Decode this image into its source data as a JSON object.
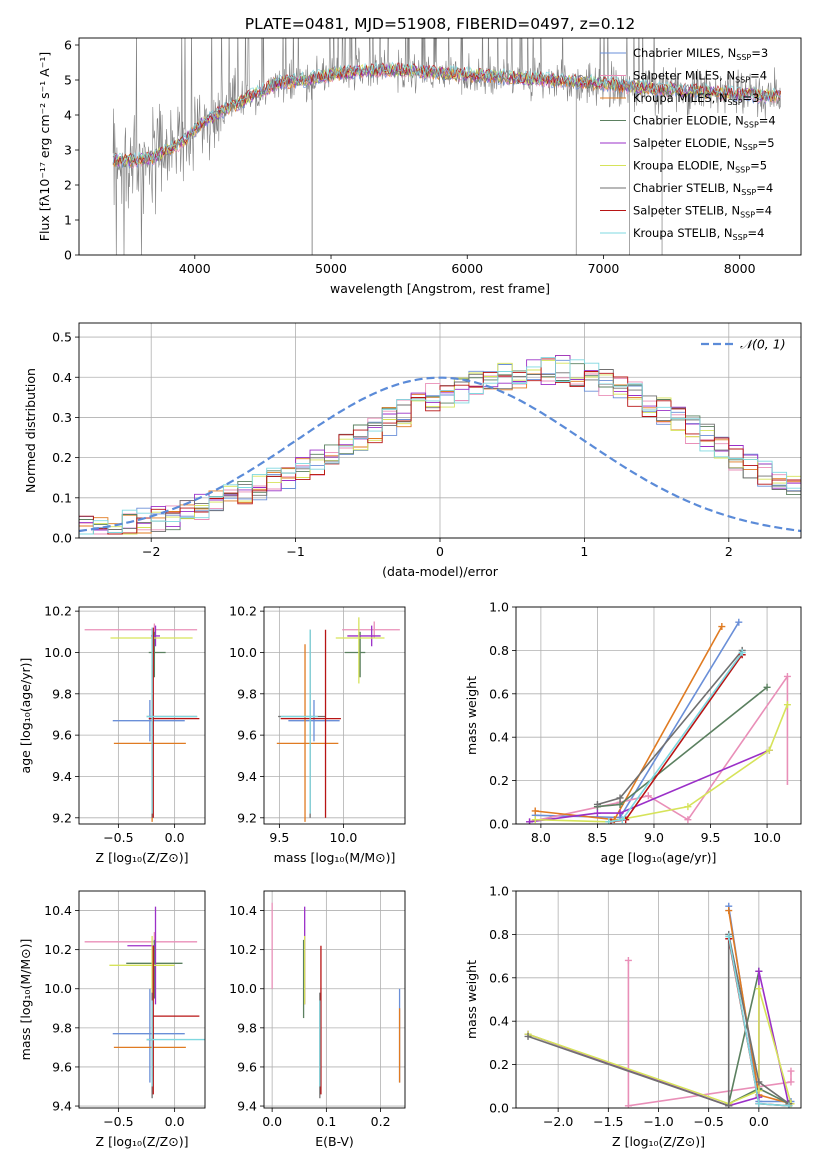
{
  "figure_title": "PLATE=0481, MJD=51908, FIBERID=0497, z=0.12",
  "colors": {
    "Chabrier MILES": "#6a8fd8",
    "Salpeter MILES": "#e98fb8",
    "Kroupa MILES": "#e07b22",
    "Chabrier ELODIE": "#5b8060",
    "Salpeter ELODIE": "#9b30c8",
    "Kroupa ELODIE": "#d6e35a",
    "Chabrier STELIB": "#707070",
    "Salpeter STELIB": "#b81414",
    "Kroupa STELIB": "#7fd8e0",
    "normal_curve": "#5b8bd8",
    "data": "#808080"
  },
  "chart_data": [
    {
      "id": "spectrum",
      "type": "line",
      "title": "PLATE=0481, MJD=51908, FIBERID=0497, z=0.12",
      "xlabel": "wavelength [Angstrom, rest frame]",
      "ylabel": "Flux [fλ10⁻¹⁷ erg cm⁻² s⁻¹ A⁻¹]",
      "xlim": [
        3150,
        8450
      ],
      "ylim": [
        0,
        6.2
      ],
      "xticks": [
        4000,
        5000,
        6000,
        7000,
        8000
      ],
      "yticks": [
        0,
        1,
        2,
        3,
        4,
        5,
        6
      ],
      "legend": "upper right",
      "legend_entries": [
        {
          "label": "Chabrier MILES, N",
          "sub": "SSP",
          "suffix": "=3",
          "color": "#6a8fd8"
        },
        {
          "label": "Salpeter MILES, N",
          "sub": "SSP",
          "suffix": "=4",
          "color": "#e98fb8"
        },
        {
          "label": "Kroupa MILES, N",
          "sub": "SSP",
          "suffix": "=3",
          "color": "#e07b22"
        },
        {
          "label": "Chabrier ELODIE, N",
          "sub": "SSP",
          "suffix": "=4",
          "color": "#5b8060"
        },
        {
          "label": "Salpeter ELODIE, N",
          "sub": "SSP",
          "suffix": "=5",
          "color": "#9b30c8"
        },
        {
          "label": "Kroupa ELODIE, N",
          "sub": "SSP",
          "suffix": "=5",
          "color": "#d6e35a"
        },
        {
          "label": "Chabrier STELIB, N",
          "sub": "SSP",
          "suffix": "=4",
          "color": "#707070"
        },
        {
          "label": "Salpeter STELIB, N",
          "sub": "SSP",
          "suffix": "=4",
          "color": "#b81414"
        },
        {
          "label": "Kroupa STELIB, N",
          "sub": "SSP",
          "suffix": "=4",
          "color": "#7fd8e0"
        }
      ],
      "model_continuum": {
        "x": [
          3400,
          3550,
          3700,
          3800,
          3900,
          4000,
          4100,
          4200,
          4300,
          4400,
          4500,
          4600,
          4800,
          5000,
          5200,
          5400,
          5600,
          5800,
          6000,
          6200,
          6400,
          6600,
          6800,
          7000,
          7200,
          7400,
          7600,
          7800,
          8000,
          8200
        ],
        "y": [
          2.7,
          2.7,
          2.8,
          3.0,
          3.2,
          3.6,
          3.9,
          4.1,
          4.3,
          4.5,
          4.7,
          4.9,
          5.0,
          5.15,
          5.25,
          5.3,
          5.25,
          5.2,
          5.15,
          5.1,
          5.05,
          5.0,
          4.95,
          4.9,
          4.8,
          4.75,
          4.7,
          4.65,
          4.6,
          4.55
        ]
      }
    },
    {
      "id": "residuals",
      "type": "step",
      "xlabel": "(data-model)/error",
      "ylabel": "Normed distribution",
      "xlim": [
        -2.5,
        2.5
      ],
      "ylim": [
        0,
        0.535
      ],
      "xticks": [
        -2,
        -1,
        0,
        1,
        2
      ],
      "yticks": [
        0.0,
        0.1,
        0.2,
        0.3,
        0.4,
        0.5
      ],
      "legend": "upper right",
      "legend_entry": "𝒩(0, 1)",
      "bin_width": 0.1,
      "bin_start": -2.5,
      "values_reference": [
        0.02,
        0.02,
        0.03,
        0.035,
        0.04,
        0.045,
        0.05,
        0.06,
        0.075,
        0.09,
        0.1,
        0.11,
        0.125,
        0.14,
        0.155,
        0.17,
        0.19,
        0.21,
        0.23,
        0.25,
        0.27,
        0.29,
        0.31,
        0.33,
        0.35,
        0.36,
        0.37,
        0.385,
        0.395,
        0.4,
        0.405,
        0.41,
        0.415,
        0.42,
        0.41,
        0.4,
        0.385,
        0.37,
        0.355,
        0.335,
        0.315,
        0.295,
        0.27,
        0.25,
        0.225,
        0.2,
        0.18,
        0.16,
        0.14,
        0.12
      ]
    },
    {
      "id": "age_vs_Z",
      "type": "errorbar",
      "xlabel": "Z [log₁₀(Z/Z⊙)]",
      "ylabel": "age  [log₁₀(age/yr)]",
      "xlim": [
        -0.85,
        0.27
      ],
      "ylim": [
        9.17,
        10.22
      ],
      "xticks": [
        -0.5,
        0.0
      ],
      "xticklabels": [
        "−0.5",
        "0.0"
      ],
      "yticks": [
        9.2,
        9.4,
        9.6,
        9.8,
        10.0,
        10.2
      ],
      "points": [
        {
          "name": "Chabrier MILES",
          "x": -0.22,
          "xerr": [
            0.33,
            0.31
          ],
          "y": 9.67,
          "yerr": [
            0.1,
            0.1
          ]
        },
        {
          "name": "Salpeter MILES",
          "x": -0.18,
          "xerr": [
            0.62,
            0.38
          ],
          "y": 10.11,
          "yerr": [
            0.03,
            0.03
          ]
        },
        {
          "name": "Kroupa MILES",
          "x": -0.2,
          "xerr": [
            0.34,
            0.3
          ],
          "y": 9.56,
          "yerr": [
            0.38,
            0.38
          ]
        },
        {
          "name": "Chabrier ELODIE",
          "x": -0.18,
          "xerr": [
            0.05,
            0.1
          ],
          "y": 10.0,
          "yerr": [
            0.12,
            0.1
          ]
        },
        {
          "name": "Salpeter ELODIE",
          "x": -0.17,
          "xerr": [
            0.04,
            0.04
          ],
          "y": 10.08,
          "yerr": [
            0.05,
            0.05
          ]
        },
        {
          "name": "Kroupa ELODIE",
          "x": -0.2,
          "xerr": [
            0.37,
            0.36
          ],
          "y": 10.07,
          "yerr": [
            0.04,
            0.04
          ]
        },
        {
          "name": "Chabrier STELIB",
          "x": -0.2,
          "xerr": [
            0.05,
            0.4
          ],
          "y": 9.69,
          "yerr": [
            0.49,
            0.4
          ]
        },
        {
          "name": "Salpeter STELIB",
          "x": -0.19,
          "xerr": [
            0.04,
            0.41
          ],
          "y": 9.68,
          "yerr": [
            0.48,
            0.44
          ]
        },
        {
          "name": "Kroupa STELIB",
          "x": -0.2,
          "xerr": [
            0.05,
            0.4
          ],
          "y": 9.69,
          "yerr": [
            0.47,
            0.43
          ]
        }
      ]
    },
    {
      "id": "age_vs_mass",
      "type": "errorbar",
      "xlabel": "mass [log₁₀(M/M⊙)]",
      "xlim": [
        9.38,
        10.48
      ],
      "ylim": [
        9.17,
        10.22
      ],
      "xticks": [
        9.5,
        10.0
      ],
      "yticks": [
        9.2,
        9.4,
        9.6,
        9.8,
        10.0,
        10.2
      ],
      "points": [
        {
          "name": "Chabrier MILES",
          "x": 9.77,
          "xerr": [
            0.2,
            0.2
          ],
          "y": 9.67,
          "yerr": [
            0.1,
            0.1
          ]
        },
        {
          "name": "Salpeter MILES",
          "x": 10.24,
          "xerr": [
            0.25,
            0.2
          ],
          "y": 10.11,
          "yerr": [
            0.04,
            0.04
          ]
        },
        {
          "name": "Kroupa MILES",
          "x": 9.7,
          "xerr": [
            0.22,
            0.26
          ],
          "y": 9.56,
          "yerr": [
            0.38,
            0.48
          ]
        },
        {
          "name": "Chabrier ELODIE",
          "x": 10.13,
          "xerr": [
            0.12,
            0.04
          ],
          "y": 10.0,
          "yerr": [
            0.12,
            0.1
          ]
        },
        {
          "name": "Salpeter ELODIE",
          "x": 10.22,
          "xerr": [
            0.19,
            0.07
          ],
          "y": 10.08,
          "yerr": [
            0.05,
            0.05
          ]
        },
        {
          "name": "Kroupa ELODIE",
          "x": 10.12,
          "xerr": [
            0.18,
            0.2
          ],
          "y": 10.07,
          "yerr": [
            0.22,
            0.1
          ]
        },
        {
          "name": "Chabrier STELIB",
          "x": 9.74,
          "xerr": [
            0.25,
            0.12
          ],
          "y": 9.69,
          "yerr": [
            0.49,
            0.42
          ]
        },
        {
          "name": "Salpeter STELIB",
          "x": 9.86,
          "xerr": [
            0.35,
            0.12
          ],
          "y": 9.68,
          "yerr": [
            0.48,
            0.43
          ]
        },
        {
          "name": "Kroupa STELIB",
          "x": 9.74,
          "xerr": [
            0.23,
            0.06
          ],
          "y": 9.69,
          "yerr": [
            0.47,
            0.42
          ]
        }
      ]
    },
    {
      "id": "weight_vs_age",
      "type": "line",
      "xlabel": "age  [log₁₀(age/yr)]",
      "ylabel": "mass weight",
      "xlim": [
        7.78,
        10.3
      ],
      "ylim": [
        0,
        1.0
      ],
      "xticks": [
        8.0,
        8.5,
        9.0,
        9.5,
        10.0
      ],
      "yticks": [
        0.0,
        0.2,
        0.4,
        0.6,
        0.8,
        1.0
      ],
      "series": [
        {
          "name": "Chabrier MILES",
          "x": [
            7.95,
            8.7,
            9.75
          ],
          "y": [
            0.04,
            0.03,
            0.93
          ]
        },
        {
          "name": "Salpeter MILES",
          "x": [
            7.9,
            8.7,
            8.95,
            9.3,
            10.18
          ],
          "y": [
            0.01,
            0.1,
            0.13,
            0.02,
            0.68
          ],
          "yerr_at_last": [
            0.5,
            0.0
          ]
        },
        {
          "name": "Kroupa MILES",
          "x": [
            7.95,
            8.65,
            9.6
          ],
          "y": [
            0.06,
            0.02,
            0.91
          ]
        },
        {
          "name": "Chabrier ELODIE",
          "x": [
            8.5,
            8.7,
            10.0
          ],
          "y": [
            0.08,
            0.09,
            0.63
          ]
        },
        {
          "name": "Salpeter ELODIE",
          "x": [
            7.9,
            8.5,
            8.7,
            10.02
          ],
          "y": [
            0.01,
            0.05,
            0.05,
            0.34
          ]
        },
        {
          "name": "Kroupa ELODIE",
          "x": [
            7.95,
            8.6,
            9.3,
            10.02,
            10.18
          ],
          "y": [
            0.02,
            0.01,
            0.08,
            0.34,
            0.55
          ]
        },
        {
          "name": "Chabrier STELIB",
          "x": [
            8.5,
            8.7,
            9.78
          ],
          "y": [
            0.09,
            0.12,
            0.8
          ]
        },
        {
          "name": "Salpeter STELIB",
          "x": [
            8.62,
            8.75,
            9.78
          ],
          "y": [
            0.01,
            0.02,
            0.78
          ]
        },
        {
          "name": "Kroupa STELIB",
          "x": [
            8.6,
            8.72,
            9.78
          ],
          "y": [
            0.01,
            0.02,
            0.79
          ]
        }
      ]
    },
    {
      "id": "mass_vs_Z",
      "type": "errorbar",
      "xlabel": "Z [log₁₀(Z/Z⊙)]",
      "ylabel": "mass [log₁₀(M/M⊙)]",
      "xlim": [
        -0.85,
        0.27
      ],
      "ylim": [
        9.39,
        10.5
      ],
      "xticks": [
        -0.5,
        0.0
      ],
      "xticklabels": [
        "−0.5",
        "0.0"
      ],
      "yticks": [
        9.4,
        9.6,
        9.8,
        10.0,
        10.2,
        10.4
      ],
      "points": [
        {
          "name": "Chabrier MILES",
          "x": -0.22,
          "xerr": [
            0.33,
            0.31
          ],
          "y": 9.77,
          "yerr": [
            0.25,
            0.23
          ]
        },
        {
          "name": "Salpeter MILES",
          "x": -0.18,
          "xerr": [
            0.62,
            0.38
          ],
          "y": 10.24,
          "yerr": [
            0.05,
            0.05
          ]
        },
        {
          "name": "Kroupa MILES",
          "x": -0.2,
          "xerr": [
            0.34,
            0.3
          ],
          "y": 9.7,
          "yerr": [
            0.15,
            0.2
          ]
        },
        {
          "name": "Chabrier ELODIE",
          "x": -0.18,
          "xerr": [
            0.25,
            0.25
          ],
          "y": 10.13,
          "yerr": [
            0.18,
            0.12
          ]
        },
        {
          "name": "Salpeter ELODIE",
          "x": -0.17,
          "xerr": [
            0.25,
            0.0
          ],
          "y": 10.22,
          "yerr": [
            0.3,
            0.2
          ]
        },
        {
          "name": "Kroupa ELODIE",
          "x": -0.2,
          "xerr": [
            0.38,
            0.2
          ],
          "y": 10.12,
          "yerr": [
            0.2,
            0.15
          ]
        },
        {
          "name": "Chabrier STELIB",
          "x": -0.2,
          "xerr": [
            0.05,
            0.0
          ],
          "y": 9.74,
          "yerr": [
            0.3,
            0.24
          ]
        },
        {
          "name": "Salpeter STELIB",
          "x": -0.19,
          "xerr": [
            0.0,
            0.41
          ],
          "y": 9.86,
          "yerr": [
            0.4,
            0.36
          ]
        },
        {
          "name": "Kroupa STELIB",
          "x": -0.2,
          "xerr": [
            0.05,
            0.47
          ],
          "y": 9.74,
          "yerr": [
            0.24,
            0.2
          ]
        }
      ]
    },
    {
      "id": "mass_vs_ebv",
      "type": "errorbar",
      "xlabel": "E(B-V)",
      "xlim": [
        -0.015,
        0.245
      ],
      "ylim": [
        9.39,
        10.5
      ],
      "xticks": [
        0.0,
        0.1,
        0.2
      ],
      "yticks": [
        9.4,
        9.6,
        9.8,
        10.0,
        10.2,
        10.4
      ],
      "points": [
        {
          "name": "Chabrier MILES",
          "x": 0.235,
          "y": 9.77,
          "yerr": [
            0.25,
            0.23
          ]
        },
        {
          "name": "Salpeter MILES",
          "x": 0.0,
          "y": 10.24,
          "yerr": [
            0.24,
            0.2
          ]
        },
        {
          "name": "Kroupa MILES",
          "x": 0.235,
          "y": 9.7,
          "yerr": [
            0.18,
            0.2
          ]
        },
        {
          "name": "Chabrier ELODIE",
          "x": 0.058,
          "y": 10.13,
          "yerr": [
            0.28,
            0.12
          ]
        },
        {
          "name": "Salpeter ELODIE",
          "x": 0.06,
          "y": 10.22,
          "yerr": [
            0.3,
            0.2
          ]
        },
        {
          "name": "Kroupa ELODIE",
          "x": 0.06,
          "y": 10.12,
          "yerr": [
            0.2,
            0.15
          ]
        },
        {
          "name": "Chabrier STELIB",
          "x": 0.088,
          "y": 9.74,
          "yerr": [
            0.3,
            0.24
          ]
        },
        {
          "name": "Salpeter STELIB",
          "x": 0.09,
          "y": 9.86,
          "yerr": [
            0.4,
            0.36
          ]
        },
        {
          "name": "Kroupa STELIB",
          "x": 0.088,
          "y": 9.74,
          "yerr": [
            0.24,
            0.2
          ]
        }
      ]
    },
    {
      "id": "weight_vs_Z",
      "type": "line",
      "xlabel": "Z [log₁₀(Z/Z⊙)]",
      "ylabel": "mass weight",
      "xlim": [
        -2.42,
        0.42
      ],
      "ylim": [
        0,
        1.0
      ],
      "xticks": [
        -2.0,
        -1.5,
        -1.0,
        -0.5,
        0.0
      ],
      "xticklabels": [
        "−2.0",
        "−1.5",
        "−1.0",
        "−0.5",
        "0.0"
      ],
      "yticks": [
        0.0,
        0.2,
        0.4,
        0.6,
        0.8,
        1.0
      ],
      "series": [
        {
          "name": "Chabrier MILES",
          "x": [
            -0.3,
            0.0,
            0.32
          ],
          "y": [
            0.93,
            0.03,
            0.03
          ]
        },
        {
          "name": "Salpeter MILES",
          "x": [
            -1.3,
            -1.3,
            0.32,
            0.32
          ],
          "y": [
            0.68,
            0.01,
            0.12,
            0.17
          ]
        },
        {
          "name": "Kroupa MILES",
          "x": [
            -0.3,
            0.0,
            0.32
          ],
          "y": [
            0.91,
            0.06,
            0.02
          ]
        },
        {
          "name": "Chabrier ELODIE",
          "x": [
            0.0,
            -0.3,
            0.0,
            0.3
          ],
          "y": [
            0.63,
            0.02,
            0.09,
            0.02
          ]
        },
        {
          "name": "Salpeter ELODIE",
          "x": [
            -2.3,
            -0.3,
            0.0,
            0.0,
            0.3
          ],
          "y": [
            0.34,
            0.01,
            0.05,
            0.63,
            0.01
          ]
        },
        {
          "name": "Kroupa ELODIE",
          "x": [
            -2.3,
            -0.3,
            0.0,
            0.0,
            0.32
          ],
          "y": [
            0.34,
            0.02,
            0.08,
            0.55,
            0.02
          ]
        },
        {
          "name": "Chabrier STELIB",
          "x": [
            -2.3,
            -0.3,
            -0.3,
            0.0,
            0.3
          ],
          "y": [
            0.33,
            0.01,
            0.8,
            0.12,
            0.02
          ]
        },
        {
          "name": "Salpeter STELIB",
          "x": [
            -0.3,
            0.0,
            0.3
          ],
          "y": [
            0.78,
            0.02,
            0.01
          ]
        },
        {
          "name": "Kroupa STELIB",
          "x": [
            -0.3,
            0.0,
            0.3
          ],
          "y": [
            0.79,
            0.02,
            0.01
          ]
        }
      ]
    }
  ]
}
